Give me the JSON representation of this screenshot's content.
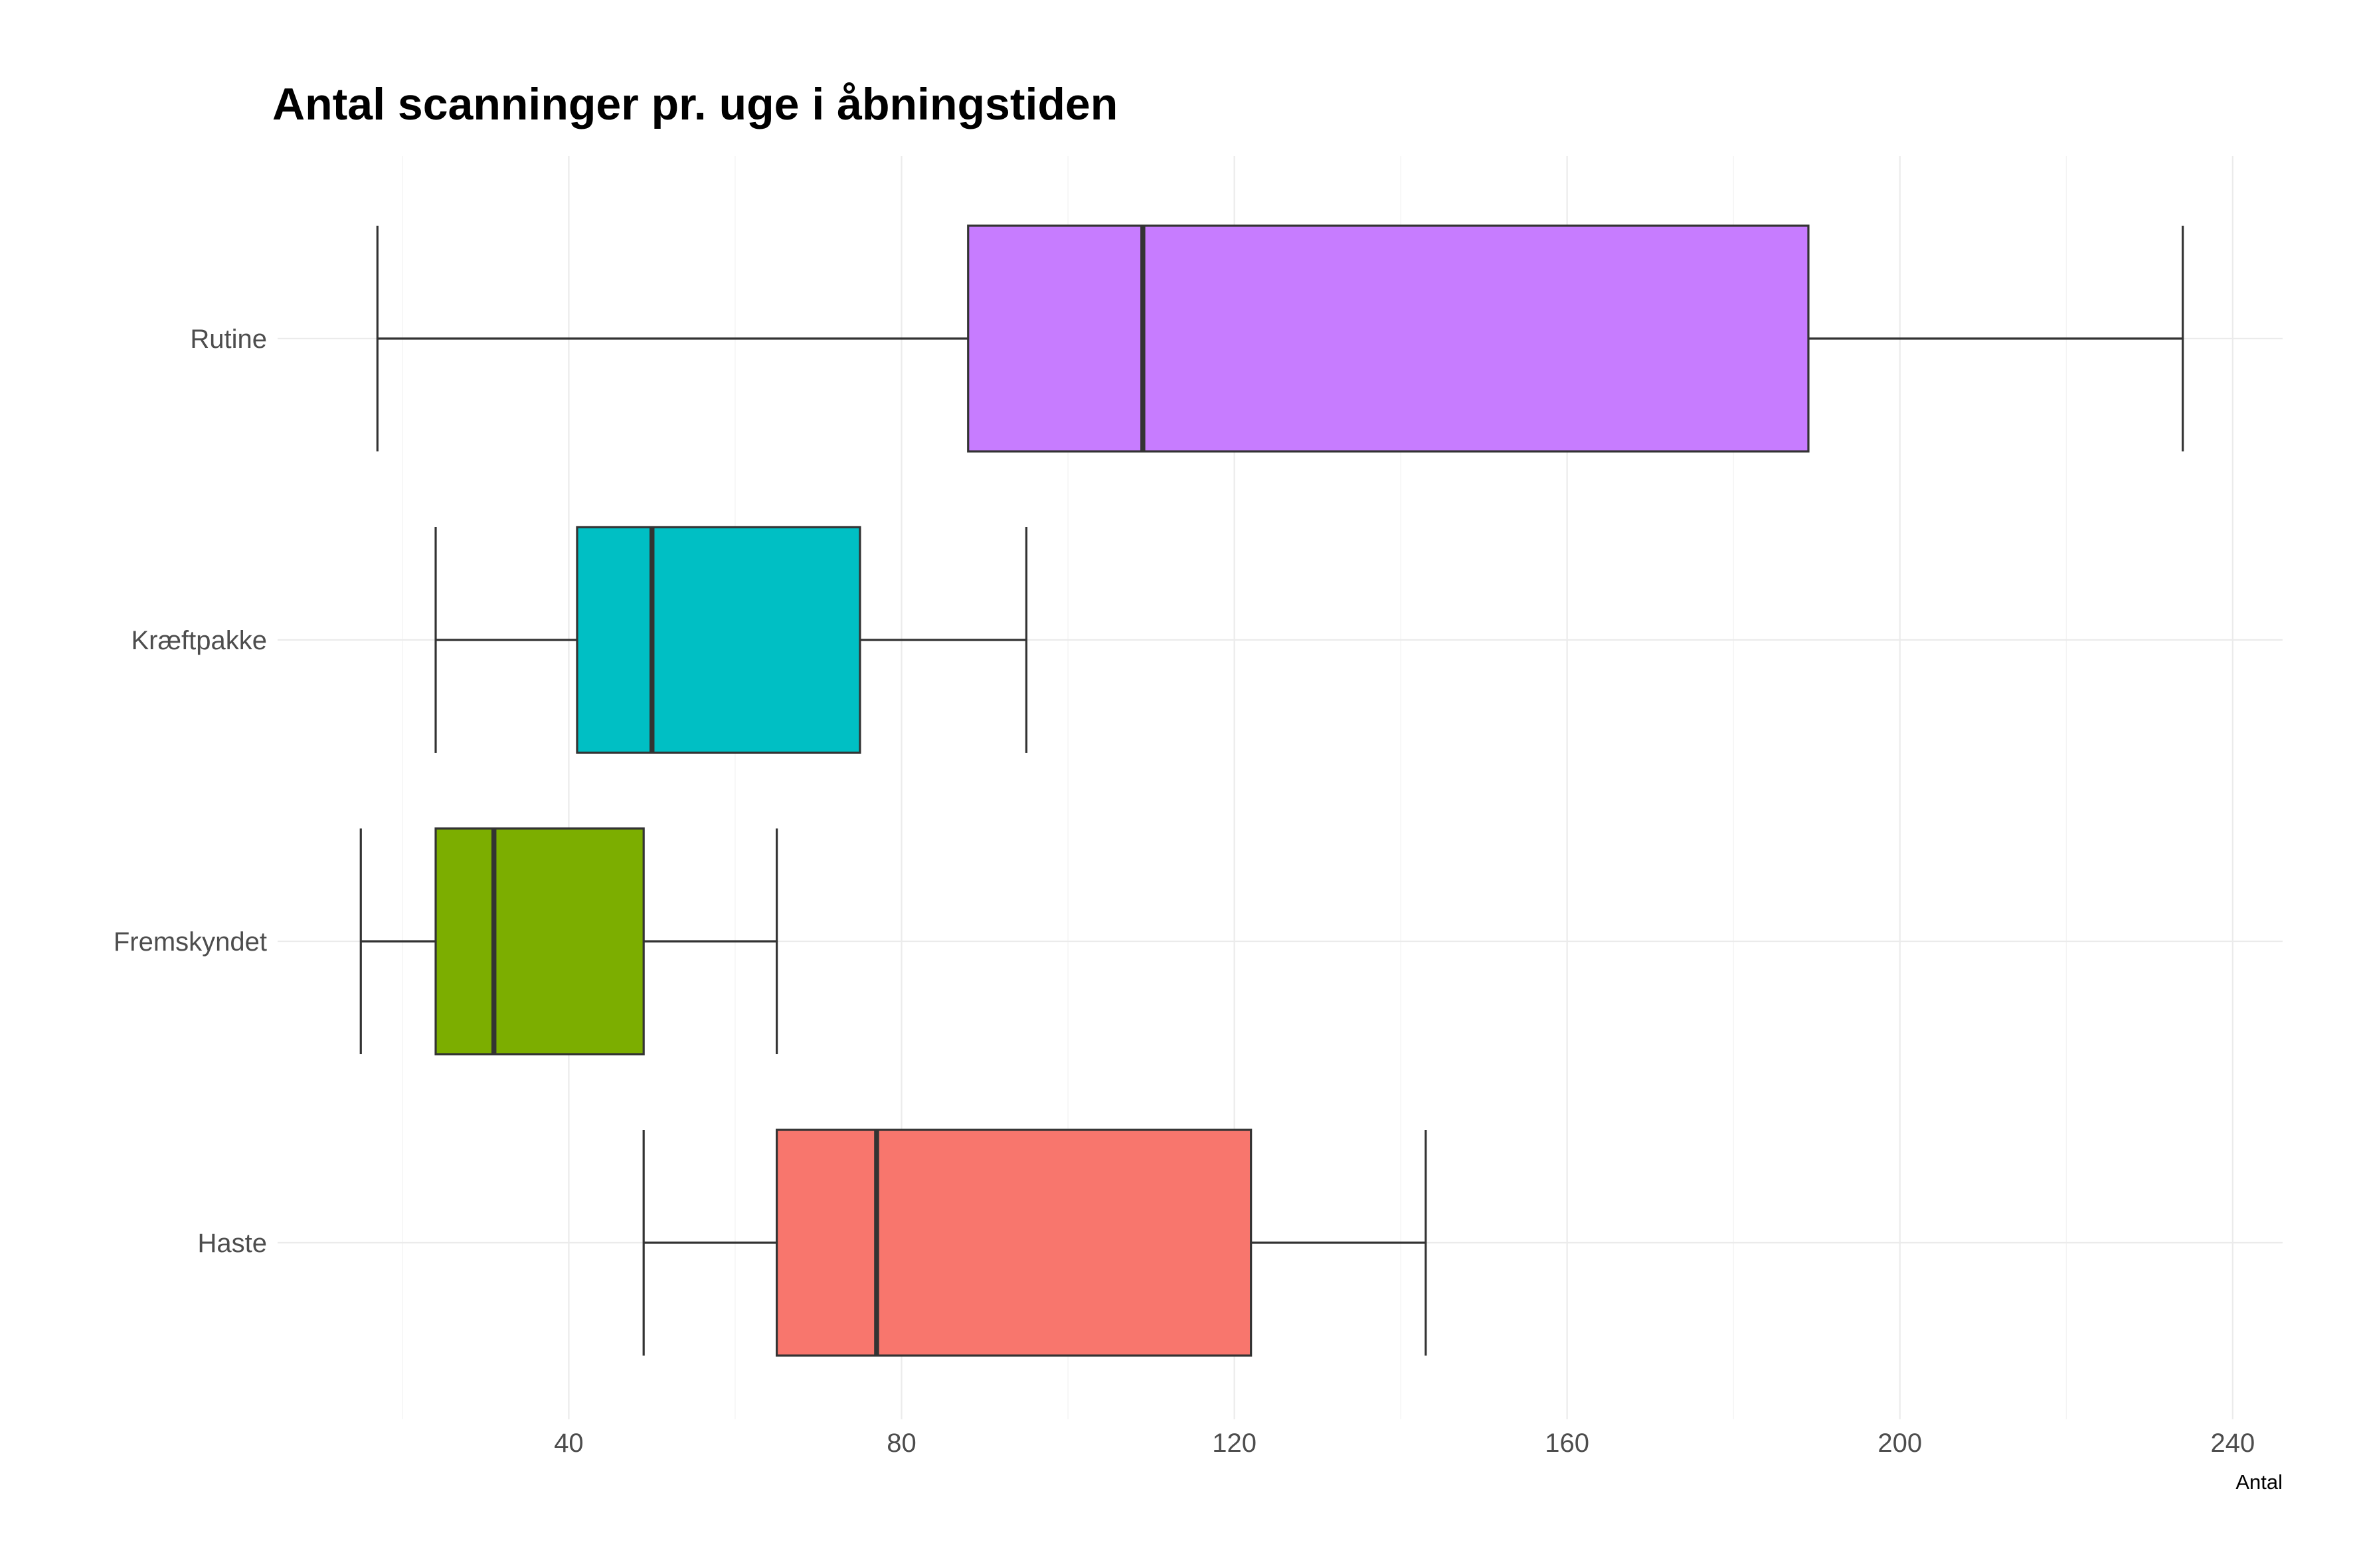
{
  "chart_data": {
    "type": "boxplot",
    "title": "Antal scanninger pr. uge i åbningstiden",
    "xlabel": "Antal",
    "ylabel": "",
    "xlim": [
      5,
      246
    ],
    "x_ticks": [
      40,
      80,
      120,
      160,
      200,
      240
    ],
    "x_tick_labels": [
      "40",
      "80",
      "120",
      "160",
      "200",
      "240"
    ],
    "orientation": "horizontal",
    "grid": true,
    "legend": "none",
    "categories": [
      "Rutine",
      "Kræftpakke",
      "Fremskyndet",
      "Haste"
    ],
    "boxes": [
      {
        "category": "Rutine",
        "min": 17,
        "q1": 88,
        "median": 109,
        "q3": 189,
        "max": 234,
        "color": "#C77CFF"
      },
      {
        "category": "Kræftpakke",
        "min": 24,
        "q1": 41,
        "median": 50,
        "q3": 75,
        "max": 95,
        "color": "#00BFC4"
      },
      {
        "category": "Fremskyndet",
        "min": 15,
        "q1": 24,
        "median": 31,
        "q3": 49,
        "max": 65,
        "color": "#7CAE00"
      },
      {
        "category": "Haste",
        "min": 49,
        "q1": 65,
        "median": 77,
        "q3": 122,
        "max": 143,
        "color": "#F8766D"
      }
    ]
  }
}
